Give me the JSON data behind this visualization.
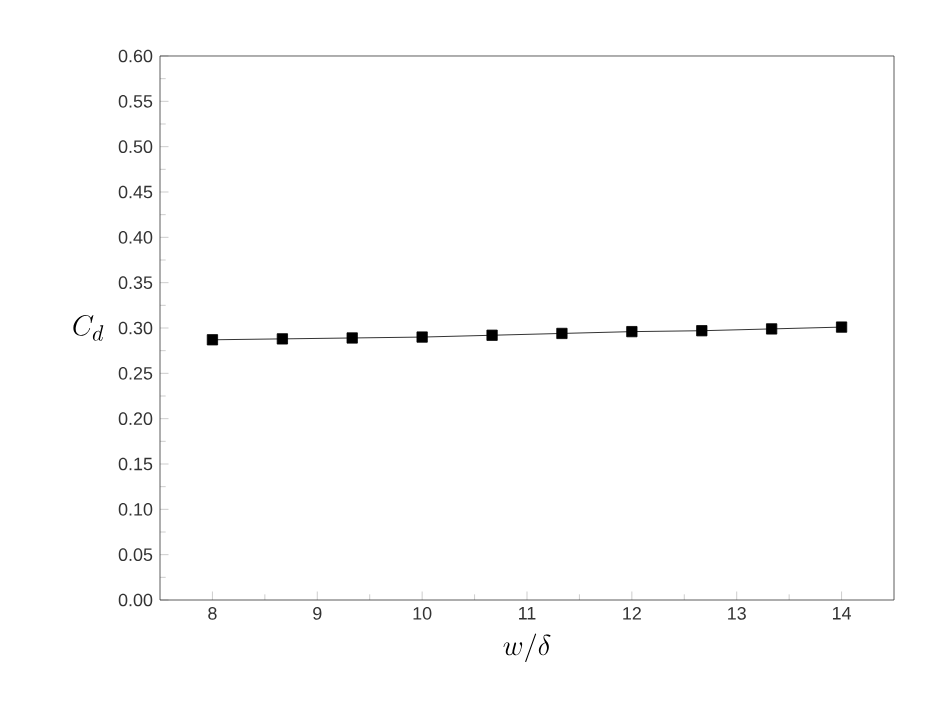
{
  "chart_data": {
    "type": "line",
    "xlabel": "w/\\delta",
    "ylabel": "C_d",
    "x": [
      8,
      8.667,
      9.333,
      10,
      10.667,
      11.333,
      12,
      12.667,
      13.333,
      14
    ],
    "series": [
      {
        "color": "#000000",
        "values": [
          0.287,
          0.288,
          0.289,
          0.29,
          0.292,
          0.294,
          0.296,
          0.297,
          0.299,
          0.301
        ]
      }
    ],
    "xlim": [
      7.5,
      14.5
    ],
    "xticks": [
      8,
      9,
      10,
      11,
      12,
      13,
      14
    ],
    "ylim": [
      0,
      0.6
    ],
    "yticks": [
      {
        "value": 0,
        "label": "0.00"
      },
      {
        "value": 0.05,
        "label": "0.05"
      },
      {
        "value": 0.1,
        "label": "0.10"
      },
      {
        "value": 0.15,
        "label": "0.15"
      },
      {
        "value": 0.2,
        "label": "0.20"
      },
      {
        "value": 0.25,
        "label": "0.25"
      },
      {
        "value": 0.3,
        "label": "0.30"
      },
      {
        "value": 0.35,
        "label": "0.35"
      },
      {
        "value": 0.4,
        "label": "0.40"
      },
      {
        "value": 0.45,
        "label": "0.45"
      },
      {
        "value": 0.5,
        "label": "0.50"
      },
      {
        "value": 0.55,
        "label": "0.55"
      },
      {
        "value": 0.6,
        "label": "0.60"
      }
    ],
    "marker": "square",
    "line_style": "solid",
    "grid": false
  }
}
